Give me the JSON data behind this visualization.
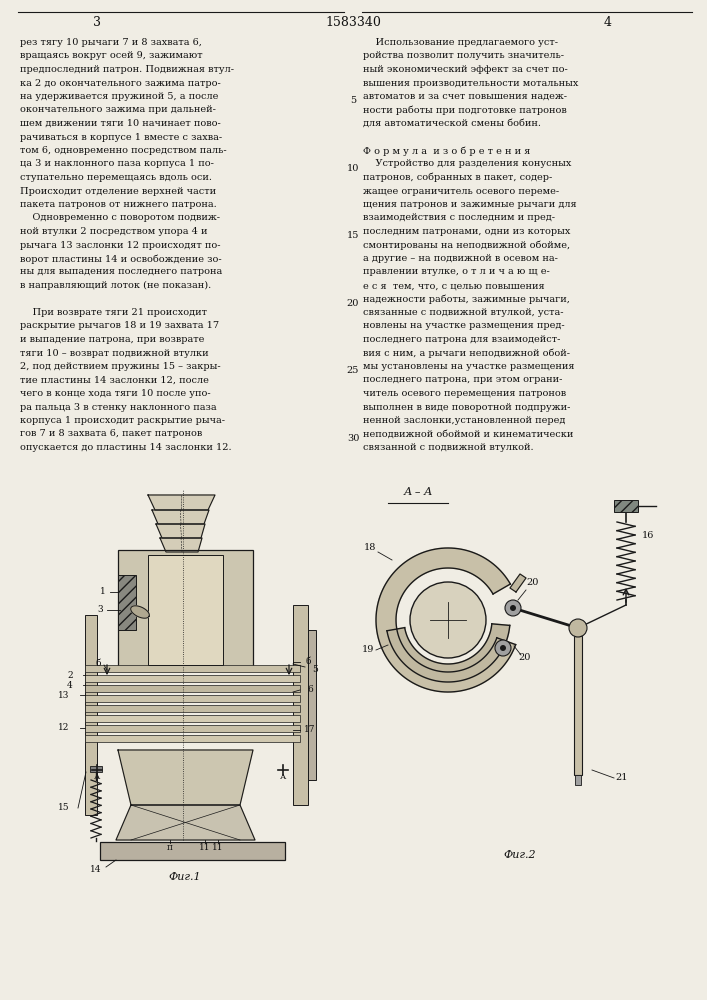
{
  "page_color": "#f0ede4",
  "line_color": "#1a1a1a",
  "text_color": "#111111",
  "header_nums": [
    "3",
    "1583340",
    "4"
  ],
  "left_col_lines": [
    "рез тягу 10 рычаги 7 и 8 захвата 6,",
    "вращаясь вокруг осей 9, зажимают",
    "предпоследний патрон. Подвижная втул-",
    "ка 2 до окончательного зажима патро-",
    "на удерживается пружиной 5, а после",
    "окончательного зажима при дальней-",
    "шем движении тяги 10 начинает пово-",
    "рачиваться в корпусе 1 вместе с захва-",
    "том 6, одновременно посредством паль-",
    "ца 3 и наклонного паза корпуса 1 по-",
    "ступательно перемещаясь вдоль оси.",
    "Происходит отделение верхней части",
    "пакета патронов от нижнего патрона.",
    "    Одновременно с поворотом подвиж-",
    "ной втулки 2 посредством упора 4 и",
    "рычага 13 заслонки 12 происходят по-",
    "ворот пластины 14 и освобождение зо-",
    "ны для выпадения последнего патрона",
    "в направляющий лоток (не показан).",
    " ",
    "    При возврате тяги 21 происходит",
    "раскрытие рычагов 18 и 19 захвата 17",
    "и выпадение патрона, при возврате",
    "тяги 10 – возврат подвижной втулки",
    "2, под действием пружины 15 – закры-",
    "тие пластины 14 заслонки 12, после",
    "чего в конце хода тяги 10 после упо-",
    "ра пальца 3 в стенку наклонного паза",
    "корпуса 1 происходит раскрытие рыча-",
    "гов 7 и 8 захвата 6, пакет патронов",
    "опускается до пластины 14 заслонки 12."
  ],
  "right_col_lines": [
    "    Использование предлагаемого уст-",
    "ройства позволит получить значитель-",
    "ный экономический эффект за счет по-",
    "вышения производительности мотальных",
    "автоматов и за счет повышения надеж-",
    "ности работы при подготовке патронов",
    "для автоматической смены бобин.",
    " ",
    "Ф о р м у л а  и з о б р е т е н и я",
    "    Устройство для разделения конусных",
    "патронов, собранных в пакет, содер-",
    "жащее ограничитель осевого переме-",
    "щения патронов и зажимные рычаги для",
    "взаимодействия с последним и пред-",
    "последним патронами, одни из которых",
    "смонтированы на неподвижной обойме,",
    "а другие – на подвижной в осевом на-",
    "правлении втулке, о т л и ч а ю щ е-",
    "е с я  тем, что, с целью повышения",
    "надежности работы, зажимные рычаги,",
    "связанные с подвижной втулкой, уста-",
    "новлены на участке размещения пред-",
    "последнего патрона для взаимодейст-",
    "вия с ним, а рычаги неподвижной обой-",
    "мы установлены на участке размещения",
    "последнего патрона, при этом ограни-",
    "читель осевого перемещения патронов",
    "выполнен в виде поворотной подпружи-",
    "ненной заслонки,установленной перед",
    "неподвижной обоймой и кинематически",
    "связанной с подвижной втулкой."
  ],
  "fig1_label": "Фиг.1",
  "fig2_label": "Фиг.2",
  "section_label": "А – А"
}
